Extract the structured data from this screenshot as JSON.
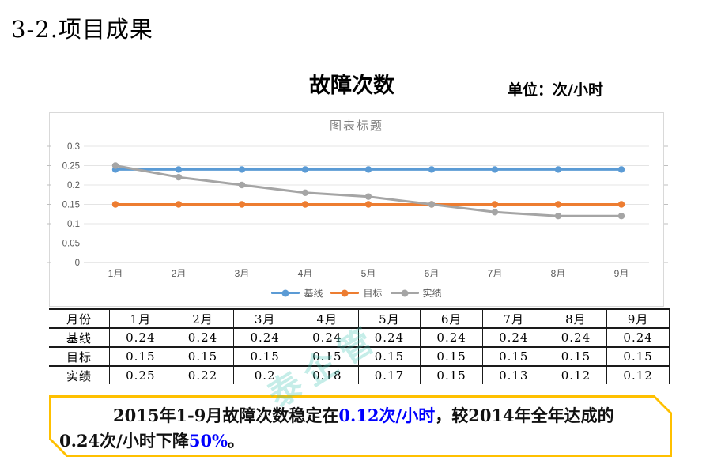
{
  "page": {
    "title": "3-2.项目成果"
  },
  "header": {
    "chart_heading": "故障次数",
    "unit_label": "单位：次/小时"
  },
  "chart_data": {
    "type": "line",
    "title": "图表标题",
    "categories": [
      "1月",
      "2月",
      "3月",
      "4月",
      "5月",
      "6月",
      "7月",
      "8月",
      "9月"
    ],
    "series": [
      {
        "id": "baseline",
        "name": "基线",
        "color": "#5B9BD5",
        "values": [
          0.24,
          0.24,
          0.24,
          0.24,
          0.24,
          0.24,
          0.24,
          0.24,
          0.24
        ]
      },
      {
        "id": "target",
        "name": "目标",
        "color": "#ED7D31",
        "values": [
          0.15,
          0.15,
          0.15,
          0.15,
          0.15,
          0.15,
          0.15,
          0.15,
          0.15
        ]
      },
      {
        "id": "actual",
        "name": "实绩",
        "color": "#A5A5A5",
        "values": [
          0.25,
          0.22,
          0.2,
          0.18,
          0.17,
          0.15,
          0.13,
          0.12,
          0.12
        ]
      }
    ],
    "xlabel": "",
    "ylabel": "",
    "ylim": [
      0,
      0.3
    ],
    "ytick_step": 0.05,
    "ytick_labels": [
      "0",
      "0.05",
      "0.1",
      "0.15",
      "0.2",
      "0.25",
      "0.3"
    ],
    "grid": true,
    "legend_position": "bottom",
    "colors": {
      "grid": "#e4e4e4",
      "axis": "#d3d3d3",
      "tick": "#bfbfbf",
      "label": "#595959"
    }
  },
  "table": {
    "header_row": [
      "月份",
      "1月",
      "2月",
      "3月",
      "4月",
      "5月",
      "6月",
      "7月",
      "8月",
      "9月"
    ],
    "rows": [
      {
        "label": "基线",
        "values": [
          "0.24",
          "0.24",
          "0.24",
          "0.24",
          "0.24",
          "0.24",
          "0.24",
          "0.24",
          "0.24"
        ]
      },
      {
        "label": "目标",
        "values": [
          "0.15",
          "0.15",
          "0.15",
          "0.15",
          "0.15",
          "0.15",
          "0.15",
          "0.15",
          "0.15"
        ]
      },
      {
        "label": "实绩",
        "values": [
          "0.25",
          "0.22",
          "0.2",
          "0.18",
          "0.17",
          "0.15",
          "0.13",
          "0.12",
          "0.12"
        ]
      }
    ]
  },
  "summary": {
    "line1_part1": "2015年1-9月故障次数稳定在",
    "line1_highlight": "0.12次/小时",
    "line1_part2": "，较2014年全年达成的",
    "line2_part1": "0.24次/小时下降",
    "line2_highlight": "50%",
    "line2_part2": "。",
    "highlight_color": "#0000FF",
    "border_color": "#FFC000"
  },
  "watermark": {
    "text": "泰企管",
    "color": "rgba(64,196,180,0.30)"
  }
}
